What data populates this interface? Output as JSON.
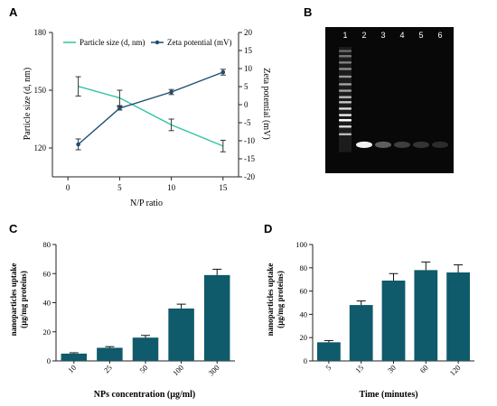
{
  "panels": {
    "A": "A",
    "B": "B",
    "C": "C",
    "D": "D"
  },
  "colors": {
    "teal_light": "#2ec4a0",
    "navy": "#1d4e70",
    "bar": "#0f5a6b",
    "gel_bg": "#080808",
    "band": "#e8e8e8"
  },
  "chart_data": [
    {
      "id": "A",
      "type": "line",
      "xlabel": "N/P ratio",
      "x": [
        1,
        5,
        10,
        15
      ],
      "xticks": [
        0,
        5,
        10,
        15
      ],
      "xlim": [
        -1.5,
        16.5
      ],
      "legend_position": "top",
      "grid": false,
      "series": [
        {
          "name": "Particle size (d, nm)",
          "axis": "left",
          "color": "#2ec4a0",
          "marker": "none",
          "values": [
            152,
            146,
            132,
            121
          ],
          "errors": [
            5,
            4,
            3,
            3
          ]
        },
        {
          "name": "Zeta potential (mV)",
          "axis": "right",
          "color": "#1d4e70",
          "marker": "circle",
          "values": [
            -11,
            -1,
            3.5,
            9
          ],
          "errors": [
            1.5,
            0.5,
            0.7,
            0.8
          ]
        }
      ],
      "y_left": {
        "label": "Particle size (d, nm)",
        "lim": [
          105,
          180
        ],
        "ticks": [
          120,
          150,
          180
        ]
      },
      "y_right": {
        "label": "Zeta potential (mV)",
        "lim": [
          -20,
          20
        ],
        "ticks": [
          -20,
          -15,
          -10,
          -5,
          0,
          5,
          10,
          15,
          20
        ]
      }
    },
    {
      "id": "C",
      "type": "bar",
      "xlabel": "NPs concentration (µg/ml)",
      "ylabel_lines": [
        "nanoparticles uptake",
        "(µg/mg proteins)"
      ],
      "categories": [
        "10",
        "25",
        "50",
        "100",
        "300"
      ],
      "values": [
        5,
        9,
        16,
        36,
        59
      ],
      "errors": [
        0.6,
        0.8,
        1.5,
        3,
        4
      ],
      "ylim": [
        0,
        80
      ],
      "yticks": [
        0,
        20,
        40,
        60,
        80
      ],
      "grid": false
    },
    {
      "id": "D",
      "type": "bar",
      "xlabel": "Time (minutes)",
      "ylabel_lines": [
        "nanoparticles uptake",
        "(µg/mg proteins)"
      ],
      "categories": [
        "5",
        "15",
        "30",
        "60",
        "120"
      ],
      "values": [
        16,
        48,
        69,
        78,
        76
      ],
      "errors": [
        1.5,
        3.5,
        6,
        7,
        6.5
      ],
      "ylim": [
        0,
        100
      ],
      "yticks": [
        0,
        20,
        40,
        60,
        80,
        100
      ],
      "grid": false
    }
  ],
  "gel": {
    "lanes": [
      "1",
      "2",
      "3",
      "4",
      "5",
      "6"
    ],
    "ladder_bands": [
      {
        "y": 0.08,
        "i": 0.35
      },
      {
        "y": 0.12,
        "i": 0.4
      },
      {
        "y": 0.17,
        "i": 0.45
      },
      {
        "y": 0.22,
        "i": 0.5
      },
      {
        "y": 0.28,
        "i": 0.55
      },
      {
        "y": 0.34,
        "i": 0.6
      },
      {
        "y": 0.39,
        "i": 0.6
      },
      {
        "y": 0.44,
        "i": 0.7
      },
      {
        "y": 0.48,
        "i": 0.75
      },
      {
        "y": 0.53,
        "i": 0.85
      },
      {
        "y": 0.58,
        "i": 0.95
      },
      {
        "y": 0.62,
        "i": 1.0
      },
      {
        "y": 0.67,
        "i": 0.85
      },
      {
        "y": 0.73,
        "i": 0.7
      }
    ],
    "sample_bands": [
      {
        "lane": 2,
        "y": 0.82,
        "i": 0.95
      },
      {
        "lane": 3,
        "y": 0.82,
        "i": 0.35
      },
      {
        "lane": 4,
        "y": 0.82,
        "i": 0.22
      },
      {
        "lane": 5,
        "y": 0.82,
        "i": 0.18
      },
      {
        "lane": 6,
        "y": 0.82,
        "i": 0.15
      }
    ]
  }
}
